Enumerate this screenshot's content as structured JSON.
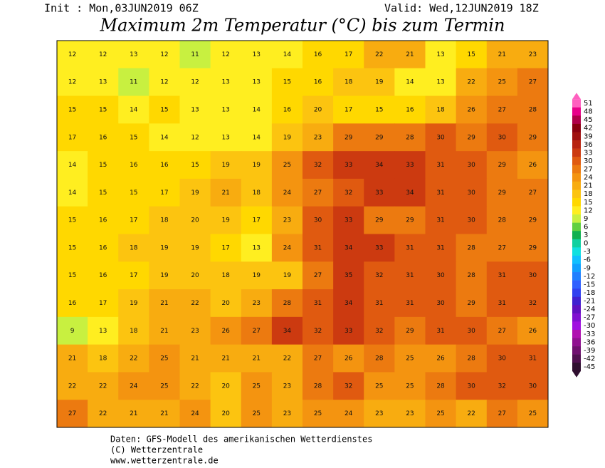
{
  "header": {
    "init": "Init : Mon,03JUN2019 06Z",
    "valid": "Valid: Wed,12JUN2019 18Z",
    "title": "Maximum 2m Temperatur (°C) bis zum Termin"
  },
  "map": {
    "rows": [
      [
        12,
        12,
        13,
        12,
        11,
        12,
        13,
        14,
        16,
        17,
        22,
        21,
        13,
        15,
        21,
        23
      ],
      [
        12,
        13,
        11,
        12,
        12,
        13,
        13,
        15,
        16,
        18,
        19,
        14,
        13,
        22,
        25,
        27
      ],
      [
        15,
        15,
        14,
        15,
        13,
        13,
        14,
        16,
        20,
        17,
        15,
        16,
        18,
        26,
        27,
        28
      ],
      [
        17,
        16,
        15,
        14,
        12,
        13,
        14,
        19,
        23,
        29,
        29,
        28,
        30,
        29,
        30,
        29
      ],
      [
        14,
        15,
        16,
        16,
        15,
        19,
        19,
        25,
        32,
        33,
        34,
        33,
        31,
        30,
        29,
        26
      ],
      [
        14,
        15,
        15,
        17,
        19,
        21,
        18,
        24,
        27,
        32,
        33,
        34,
        31,
        30,
        29,
        27
      ],
      [
        15,
        16,
        17,
        18,
        20,
        19,
        17,
        23,
        30,
        33,
        29,
        29,
        31,
        30,
        28,
        29
      ],
      [
        15,
        16,
        18,
        19,
        19,
        17,
        13,
        24,
        31,
        34,
        33,
        31,
        31,
        28,
        27,
        29
      ],
      [
        15,
        16,
        17,
        19,
        20,
        18,
        19,
        19,
        27,
        35,
        32,
        31,
        30,
        28,
        31,
        30
      ],
      [
        16,
        17,
        19,
        21,
        22,
        20,
        23,
        28,
        31,
        34,
        31,
        31,
        30,
        29,
        31,
        32
      ],
      [
        9,
        13,
        18,
        21,
        23,
        26,
        27,
        34,
        32,
        33,
        32,
        29,
        31,
        30,
        27,
        26
      ],
      [
        21,
        18,
        22,
        25,
        21,
        21,
        21,
        22,
        27,
        26,
        28,
        25,
        26,
        28,
        30,
        31
      ],
      [
        22,
        22,
        24,
        25,
        22,
        20,
        25,
        23,
        28,
        32,
        25,
        25,
        28,
        30,
        32,
        30
      ],
      [
        27,
        22,
        21,
        21,
        24,
        20,
        25,
        23,
        25,
        24,
        23,
        23,
        25,
        22,
        27,
        25
      ]
    ]
  },
  "colorbar": {
    "ticks": [
      51,
      48,
      45,
      42,
      39,
      36,
      33,
      30,
      27,
      24,
      21,
      18,
      15,
      12,
      9,
      6,
      3,
      0,
      -3,
      -6,
      -9,
      -12,
      -15,
      -18,
      -21,
      -24,
      -27,
      -30,
      -33,
      -36,
      -39,
      -42,
      -45
    ],
    "colors": [
      "#ff60c0",
      "#e8008a",
      "#b0004a",
      "#8a0010",
      "#a01010",
      "#b82410",
      "#cc3a10",
      "#e05a10",
      "#ec7a10",
      "#f49410",
      "#f8ac10",
      "#fcc410",
      "#ffd800",
      "#ffee20",
      "#c8f040",
      "#60d040",
      "#10b050",
      "#10d0a0",
      "#10e0e0",
      "#10c0ff",
      "#10a0ff",
      "#2080ff",
      "#3060ff",
      "#3040f0",
      "#4020d0",
      "#6010c0",
      "#8010d0",
      "#a010e0",
      "#b010b0",
      "#901090",
      "#701070",
      "#501050",
      "#301030"
    ]
  },
  "footer": {
    "lines": [
      "Daten: GFS-Modell des amerikanischen Wetterdienstes",
      "(C) Wetterzentrale",
      "www.wetterzentrale.de"
    ]
  }
}
